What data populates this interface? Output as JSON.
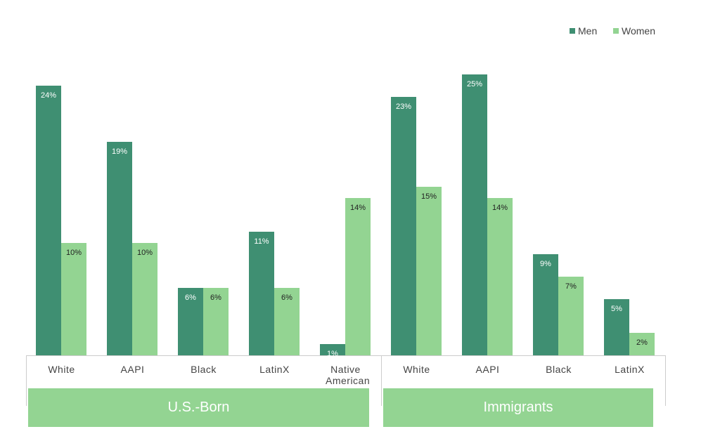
{
  "chart_data": {
    "type": "bar",
    "groups": [
      {
        "name": "U.S.-Born",
        "categories": [
          "White",
          "AAPI",
          "Black",
          "LatinX",
          "Native American"
        ]
      },
      {
        "name": "Immigrants",
        "categories": [
          "White",
          "AAPI",
          "Black",
          "LatinX"
        ]
      }
    ],
    "series": [
      {
        "name": "Men",
        "color": "#3f8f72",
        "values": [
          24,
          19,
          6,
          11,
          1,
          23,
          25,
          9,
          5
        ],
        "value_labels": [
          "24%",
          "19%",
          "6%",
          "11%",
          "1%",
          "23%",
          "25%",
          "9%",
          "5%"
        ]
      },
      {
        "name": "Women",
        "color": "#93d492",
        "values": [
          10,
          10,
          6,
          6,
          14,
          15,
          14,
          7,
          2
        ],
        "value_labels": [
          "10%",
          "10%",
          "6%",
          "6%",
          "14%",
          "15%",
          "14%",
          "7%",
          "2%"
        ]
      }
    ],
    "legend": "top-right"
  }
}
